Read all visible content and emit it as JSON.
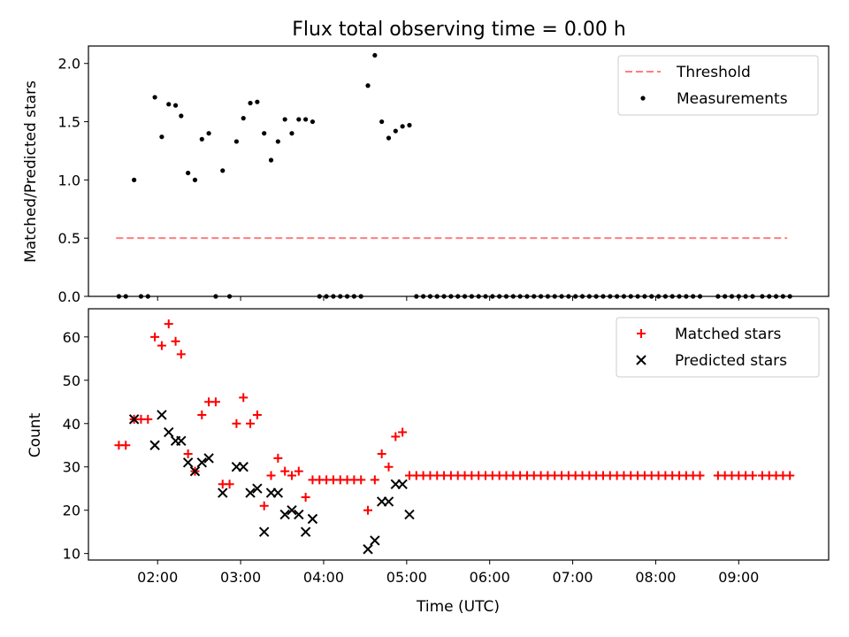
{
  "chart_data": [
    {
      "type": "scatter",
      "title": "Flux total observing time = 0.00 h",
      "xlabel": "",
      "ylabel": "Matched/Predicted stars",
      "xlim": [
        "01:10",
        "10:05"
      ],
      "ylim": [
        0,
        2.15
      ],
      "xticks": [
        "02:00",
        "03:00",
        "04:00",
        "05:00",
        "06:00",
        "07:00",
        "08:00",
        "09:00"
      ],
      "yticks": [
        "0.0",
        "0.5",
        "1.0",
        "1.5",
        "2.0"
      ],
      "tick_labels_x_visible": false,
      "legend_position": "top-right",
      "series": [
        {
          "name": "Threshold",
          "kind": "dashed-line",
          "color": "#ff7f7f",
          "points": [
            [
              "01:30",
              0.5
            ],
            [
              "09:35",
              0.5
            ]
          ]
        },
        {
          "name": "Measurements",
          "kind": "dots",
          "color": "#000000",
          "points": [
            [
              "01:32",
              0.0
            ],
            [
              "01:37",
              0.0
            ],
            [
              "01:43",
              1.0
            ],
            [
              "01:48",
              0.0
            ],
            [
              "01:53",
              0.0
            ],
            [
              "01:58",
              1.71
            ],
            [
              "02:03",
              1.37
            ],
            [
              "02:08",
              1.65
            ],
            [
              "02:13",
              1.64
            ],
            [
              "02:17",
              1.55
            ],
            [
              "02:22",
              1.06
            ],
            [
              "02:27",
              1.0
            ],
            [
              "02:32",
              1.35
            ],
            [
              "02:37",
              1.4
            ],
            [
              "02:42",
              0.0
            ],
            [
              "02:47",
              1.08
            ],
            [
              "02:52",
              0.0
            ],
            [
              "02:57",
              1.33
            ],
            [
              "03:02",
              1.53
            ],
            [
              "03:07",
              1.66
            ],
            [
              "03:12",
              1.67
            ],
            [
              "03:17",
              1.4
            ],
            [
              "03:22",
              1.17
            ],
            [
              "03:27",
              1.33
            ],
            [
              "03:32",
              1.52
            ],
            [
              "03:37",
              1.4
            ],
            [
              "03:42",
              1.52
            ],
            [
              "03:47",
              1.52
            ],
            [
              "03:52",
              1.5
            ],
            [
              "03:57",
              0.0
            ],
            [
              "04:02",
              0.0
            ],
            [
              "04:07",
              0.0
            ],
            [
              "04:12",
              0.0
            ],
            [
              "04:17",
              0.0
            ],
            [
              "04:22",
              0.0
            ],
            [
              "04:27",
              0.0
            ],
            [
              "04:32",
              1.81
            ],
            [
              "04:37",
              2.07
            ],
            [
              "04:42",
              1.5
            ],
            [
              "04:47",
              1.36
            ],
            [
              "04:52",
              1.42
            ],
            [
              "04:57",
              1.46
            ],
            [
              "05:02",
              1.47
            ],
            [
              "05:07",
              0.0
            ],
            [
              "05:12",
              0.0
            ],
            [
              "05:17",
              0.0
            ],
            [
              "05:22",
              0.0
            ],
            [
              "05:27",
              0.0
            ],
            [
              "05:32",
              0.0
            ],
            [
              "05:37",
              0.0
            ],
            [
              "05:42",
              0.0
            ],
            [
              "05:47",
              0.0
            ],
            [
              "05:52",
              0.0
            ],
            [
              "05:57",
              0.0
            ],
            [
              "06:02",
              0.0
            ],
            [
              "06:07",
              0.0
            ],
            [
              "06:12",
              0.0
            ],
            [
              "06:17",
              0.0
            ],
            [
              "06:22",
              0.0
            ],
            [
              "06:27",
              0.0
            ],
            [
              "06:32",
              0.0
            ],
            [
              "06:37",
              0.0
            ],
            [
              "06:42",
              0.0
            ],
            [
              "06:47",
              0.0
            ],
            [
              "06:52",
              0.0
            ],
            [
              "06:57",
              0.0
            ],
            [
              "07:02",
              0.0
            ],
            [
              "07:07",
              0.0
            ],
            [
              "07:12",
              0.0
            ],
            [
              "07:17",
              0.0
            ],
            [
              "07:22",
              0.0
            ],
            [
              "07:27",
              0.0
            ],
            [
              "07:32",
              0.0
            ],
            [
              "07:37",
              0.0
            ],
            [
              "07:42",
              0.0
            ],
            [
              "07:47",
              0.0
            ],
            [
              "07:52",
              0.0
            ],
            [
              "07:57",
              0.0
            ],
            [
              "08:02",
              0.0
            ],
            [
              "08:07",
              0.0
            ],
            [
              "08:12",
              0.0
            ],
            [
              "08:17",
              0.0
            ],
            [
              "08:22",
              0.0
            ],
            [
              "08:27",
              0.0
            ],
            [
              "08:32",
              0.0
            ],
            [
              "08:45",
              0.0
            ],
            [
              "08:50",
              0.0
            ],
            [
              "08:55",
              0.0
            ],
            [
              "09:00",
              0.0
            ],
            [
              "09:05",
              0.0
            ],
            [
              "09:10",
              0.0
            ],
            [
              "09:17",
              0.0
            ],
            [
              "09:22",
              0.0
            ],
            [
              "09:27",
              0.0
            ],
            [
              "09:32",
              0.0
            ],
            [
              "09:37",
              0.0
            ]
          ]
        }
      ]
    },
    {
      "type": "scatter",
      "title": "",
      "xlabel": "Time (UTC)",
      "ylabel": "Count",
      "xlim": [
        "01:10",
        "10:05"
      ],
      "ylim": [
        8.5,
        66.5
      ],
      "xticks": [
        "02:00",
        "03:00",
        "04:00",
        "05:00",
        "06:00",
        "07:00",
        "08:00",
        "09:00"
      ],
      "yticks": [
        "10",
        "20",
        "30",
        "40",
        "50",
        "60"
      ],
      "legend_position": "top-right",
      "series": [
        {
          "name": "Matched stars",
          "kind": "plus",
          "color": "#ff0000",
          "points": [
            [
              "01:32",
              35
            ],
            [
              "01:37",
              35
            ],
            [
              "01:43",
              41
            ],
            [
              "01:48",
              41
            ],
            [
              "01:53",
              41
            ],
            [
              "01:58",
              60
            ],
            [
              "02:03",
              58
            ],
            [
              "02:08",
              63
            ],
            [
              "02:13",
              59
            ],
            [
              "02:17",
              56
            ],
            [
              "02:22",
              33
            ],
            [
              "02:27",
              29
            ],
            [
              "02:32",
              42
            ],
            [
              "02:37",
              45
            ],
            [
              "02:42",
              45
            ],
            [
              "02:47",
              26
            ],
            [
              "02:52",
              26
            ],
            [
              "02:57",
              40
            ],
            [
              "03:02",
              46
            ],
            [
              "03:07",
              40
            ],
            [
              "03:12",
              42
            ],
            [
              "03:17",
              21
            ],
            [
              "03:22",
              28
            ],
            [
              "03:27",
              32
            ],
            [
              "03:32",
              29
            ],
            [
              "03:37",
              28
            ],
            [
              "03:42",
              29
            ],
            [
              "03:47",
              23
            ],
            [
              "03:52",
              27
            ],
            [
              "03:57",
              27
            ],
            [
              "04:02",
              27
            ],
            [
              "04:07",
              27
            ],
            [
              "04:12",
              27
            ],
            [
              "04:17",
              27
            ],
            [
              "04:22",
              27
            ],
            [
              "04:27",
              27
            ],
            [
              "04:32",
              20
            ],
            [
              "04:37",
              27
            ],
            [
              "04:42",
              33
            ],
            [
              "04:47",
              30
            ],
            [
              "04:52",
              37
            ],
            [
              "04:57",
              38
            ],
            [
              "05:02",
              28
            ],
            [
              "05:07",
              28
            ],
            [
              "05:12",
              28
            ],
            [
              "05:17",
              28
            ],
            [
              "05:22",
              28
            ],
            [
              "05:27",
              28
            ],
            [
              "05:32",
              28
            ],
            [
              "05:37",
              28
            ],
            [
              "05:42",
              28
            ],
            [
              "05:47",
              28
            ],
            [
              "05:52",
              28
            ],
            [
              "05:57",
              28
            ],
            [
              "06:02",
              28
            ],
            [
              "06:07",
              28
            ],
            [
              "06:12",
              28
            ],
            [
              "06:17",
              28
            ],
            [
              "06:22",
              28
            ],
            [
              "06:27",
              28
            ],
            [
              "06:32",
              28
            ],
            [
              "06:37",
              28
            ],
            [
              "06:42",
              28
            ],
            [
              "06:47",
              28
            ],
            [
              "06:52",
              28
            ],
            [
              "06:57",
              28
            ],
            [
              "07:02",
              28
            ],
            [
              "07:07",
              28
            ],
            [
              "07:12",
              28
            ],
            [
              "07:17",
              28
            ],
            [
              "07:22",
              28
            ],
            [
              "07:27",
              28
            ],
            [
              "07:32",
              28
            ],
            [
              "07:37",
              28
            ],
            [
              "07:42",
              28
            ],
            [
              "07:47",
              28
            ],
            [
              "07:52",
              28
            ],
            [
              "07:57",
              28
            ],
            [
              "08:02",
              28
            ],
            [
              "08:07",
              28
            ],
            [
              "08:12",
              28
            ],
            [
              "08:17",
              28
            ],
            [
              "08:22",
              28
            ],
            [
              "08:27",
              28
            ],
            [
              "08:32",
              28
            ],
            [
              "08:45",
              28
            ],
            [
              "08:50",
              28
            ],
            [
              "08:55",
              28
            ],
            [
              "09:00",
              28
            ],
            [
              "09:05",
              28
            ],
            [
              "09:10",
              28
            ],
            [
              "09:17",
              28
            ],
            [
              "09:22",
              28
            ],
            [
              "09:27",
              28
            ],
            [
              "09:32",
              28
            ],
            [
              "09:37",
              28
            ]
          ]
        },
        {
          "name": "Predicted stars",
          "kind": "x",
          "color": "#000000",
          "points": [
            [
              "01:43",
              41
            ],
            [
              "01:58",
              35
            ],
            [
              "02:03",
              42
            ],
            [
              "02:08",
              38
            ],
            [
              "02:13",
              36
            ],
            [
              "02:17",
              36
            ],
            [
              "02:22",
              31
            ],
            [
              "02:27",
              29
            ],
            [
              "02:32",
              31
            ],
            [
              "02:37",
              32
            ],
            [
              "02:47",
              24
            ],
            [
              "02:57",
              30
            ],
            [
              "03:02",
              30
            ],
            [
              "03:07",
              24
            ],
            [
              "03:12",
              25
            ],
            [
              "03:17",
              15
            ],
            [
              "03:22",
              24
            ],
            [
              "03:27",
              24
            ],
            [
              "03:32",
              19
            ],
            [
              "03:37",
              20
            ],
            [
              "03:42",
              19
            ],
            [
              "03:47",
              15
            ],
            [
              "03:52",
              18
            ],
            [
              "04:32",
              11
            ],
            [
              "04:37",
              13
            ],
            [
              "04:42",
              22
            ],
            [
              "04:47",
              22
            ],
            [
              "04:52",
              26
            ],
            [
              "04:57",
              26
            ],
            [
              "05:02",
              19
            ]
          ]
        }
      ]
    }
  ]
}
